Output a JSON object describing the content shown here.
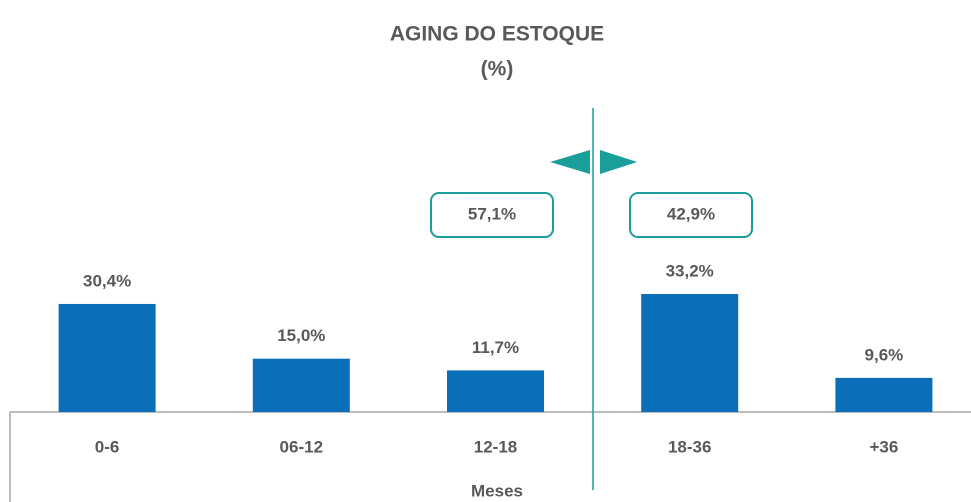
{
  "chart_data": {
    "type": "bar",
    "title": "AGING DO ESTOQUE",
    "subtitle": "(%)",
    "x_label": "Meses",
    "categories": [
      "0-6",
      "06-12",
      "12-18",
      "18-36",
      "+36"
    ],
    "values": [
      30.4,
      15.0,
      11.7,
      33.2,
      9.6
    ],
    "value_labels": [
      "30,4%",
      "15,0%",
      "11,7%",
      "33,2%",
      "9,6%"
    ],
    "color": "#0a6fb8",
    "annotations": [
      "57,1%",
      "42,9%"
    ],
    "annotation_color": "#1a9e9a"
  }
}
